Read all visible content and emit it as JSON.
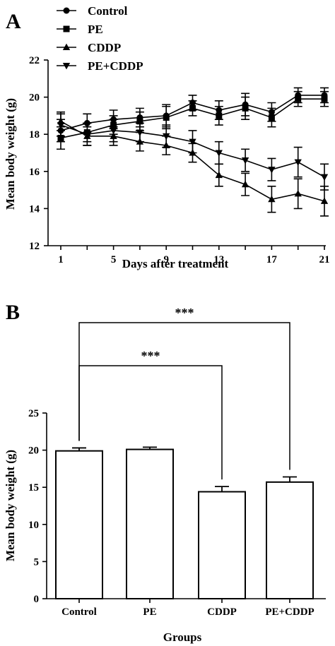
{
  "chart_data": [
    {
      "panel": "A",
      "type": "line",
      "xlabel": "Days after treatment",
      "ylabel": "Mean body weight (g)",
      "xlim": [
        1,
        21
      ],
      "ylim": [
        12,
        22
      ],
      "xticks": [
        1,
        5,
        9,
        13,
        17,
        21
      ],
      "yticks": [
        12,
        14,
        16,
        18,
        20,
        22
      ],
      "legend_position": "top-left",
      "x": [
        1,
        3,
        5,
        7,
        9,
        11,
        13,
        15,
        17,
        19,
        21
      ],
      "series": [
        {
          "name": "Control",
          "marker": "circle",
          "values": [
            18.2,
            18.6,
            18.8,
            18.9,
            19.0,
            19.7,
            19.3,
            19.6,
            19.2,
            20.1,
            20.1
          ],
          "errors": [
            0.6,
            0.5,
            0.5,
            0.5,
            0.6,
            0.4,
            0.5,
            0.6,
            0.5,
            0.4,
            0.4
          ]
        },
        {
          "name": "PE",
          "marker": "square",
          "values": [
            17.8,
            18.1,
            18.5,
            18.7,
            18.9,
            19.4,
            19.0,
            19.4,
            18.9,
            19.9,
            19.9
          ],
          "errors": [
            0.6,
            0.5,
            0.5,
            0.5,
            0.6,
            0.4,
            0.5,
            0.6,
            0.5,
            0.4,
            0.4
          ]
        },
        {
          "name": "CDDP",
          "marker": "triangle-up",
          "values": [
            18.7,
            17.9,
            17.9,
            17.6,
            17.4,
            17.0,
            15.8,
            15.3,
            14.5,
            14.8,
            14.4
          ],
          "errors": [
            0.5,
            0.5,
            0.5,
            0.5,
            0.5,
            0.5,
            0.6,
            0.6,
            0.7,
            0.8,
            0.8
          ]
        },
        {
          "name": "PE+CDDP",
          "marker": "triangle-down",
          "values": [
            18.5,
            18.0,
            18.2,
            18.1,
            17.9,
            17.6,
            17.0,
            16.6,
            16.1,
            16.5,
            15.7
          ],
          "errors": [
            0.6,
            0.6,
            0.6,
            0.5,
            0.6,
            0.6,
            0.6,
            0.6,
            0.6,
            0.8,
            0.7
          ]
        }
      ]
    },
    {
      "panel": "B",
      "type": "bar",
      "xlabel": "Groups",
      "ylabel": "Mean body weight (g)",
      "ylim": [
        0,
        25
      ],
      "yticks": [
        0,
        5,
        10,
        15,
        20,
        25
      ],
      "categories": [
        "Control",
        "PE",
        "CDDP",
        "PE+CDDP"
      ],
      "values": [
        19.9,
        20.1,
        14.4,
        15.7
      ],
      "errors": [
        0.4,
        0.3,
        0.7,
        0.7
      ],
      "significance": [
        {
          "from": "Control",
          "to": "CDDP",
          "label": "***"
        },
        {
          "from": "Control",
          "to": "PE+CDDP",
          "label": "***"
        }
      ]
    }
  ]
}
